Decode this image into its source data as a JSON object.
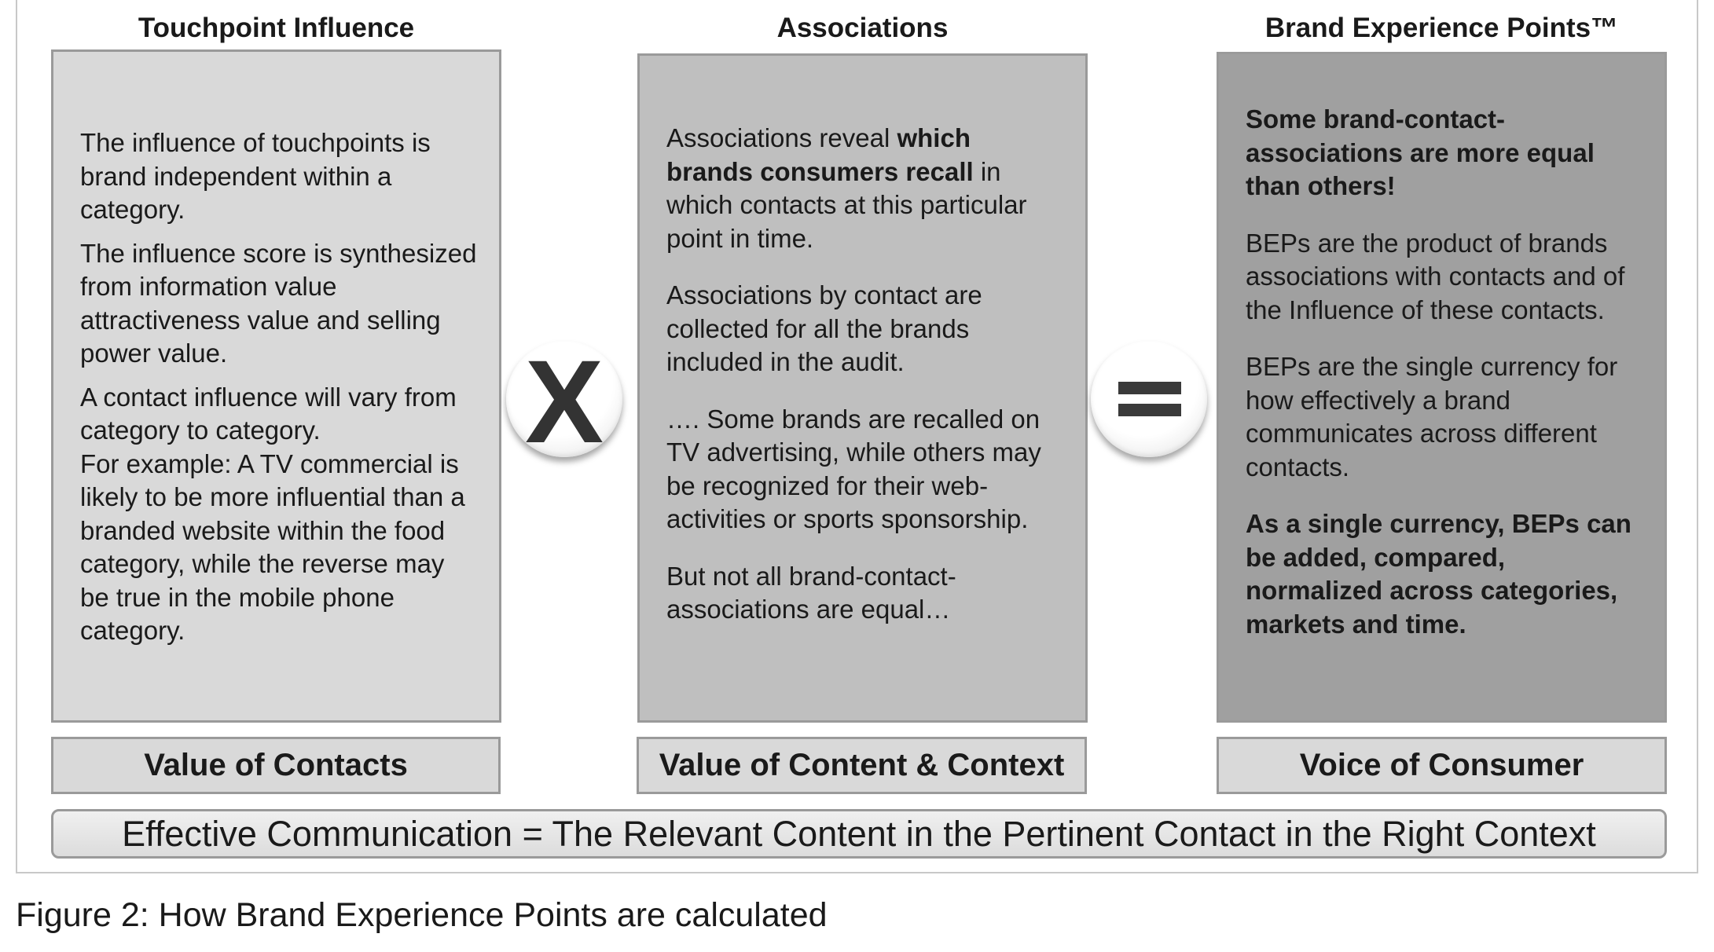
{
  "columns": [
    {
      "title": "Touchpoint Influence"
    },
    {
      "title": "Associations"
    },
    {
      "title": "Brand Experience Points™"
    }
  ],
  "box1": {
    "para1": "The influence of touchpoints is brand independent within a category.",
    "para2": "The influence score is synthesized from information value attractiveness value and selling power value.",
    "para3": "A contact influence will vary from category to category.",
    "para4": "For example: A TV commercial is likely to be more influential than a branded website within the food category, while the reverse may be true in the mobile phone category."
  },
  "box2": {
    "para1_pre": "Associations reveal ",
    "para1_bold": "which brands consumers recall",
    "para1_post": " in which contacts at this particular point in time.",
    "para2": "Associations by contact are collected for all the brands included in the audit.",
    "para3": "…. Some brands are recalled on TV advertising, while others may be recognized for their web-activities or sports sponsorship.",
    "para4": "But not all brand-contact-associations are equal…"
  },
  "box3": {
    "para1_bold": "Some brand-contact-associations are more equal than others!",
    "para2": "BEPs are the product of brands associations with contacts and of the Influence of these contacts.",
    "para3": "BEPs are the single currency for how effectively a brand communicates across different contacts.",
    "para4_bold": "As a single currency, BEPs can be added, compared, normalized across categories, markets and time."
  },
  "operators": {
    "multiply": "X"
  },
  "labels": [
    "Value of Contacts",
    "Value of Content & Context",
    "Voice of Consumer"
  ],
  "footer": "Effective Communication = The Relevant Content in the Pertinent Contact in the Right Context",
  "caption": "Figure 2: How Brand Experience Points are calculated",
  "colors": {
    "box1_fill": "#d9d9d9",
    "box2_fill": "#bfbfbf",
    "box3_fill": "#a0a0a0",
    "border": "#9a9a9a"
  }
}
